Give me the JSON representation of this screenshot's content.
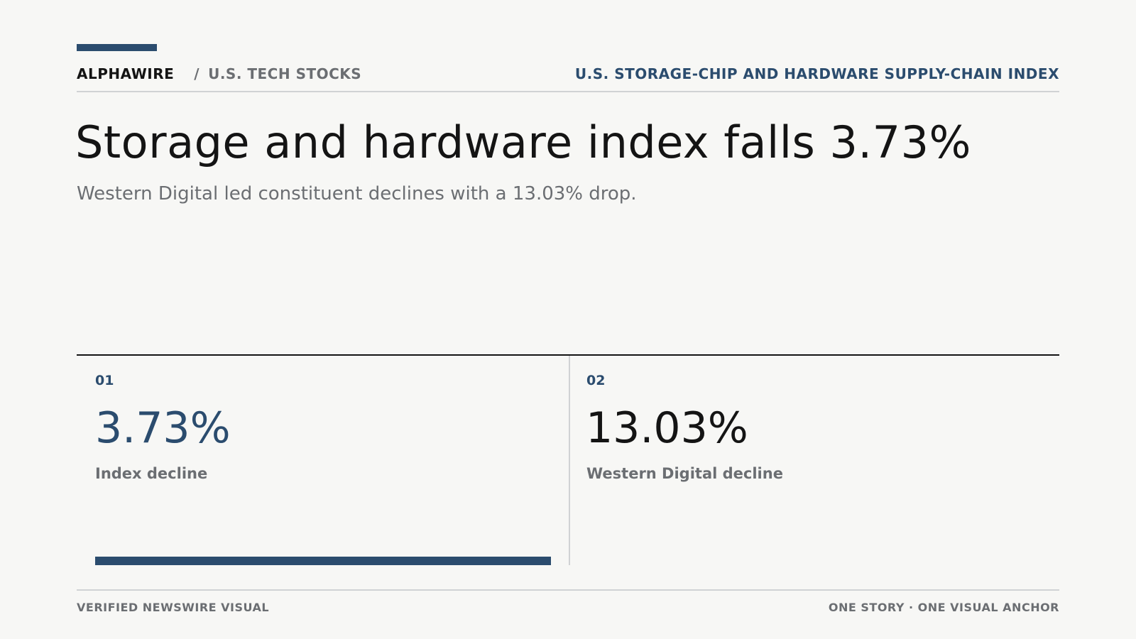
{
  "header": {
    "brand": "ALPHAWIRE",
    "separator": "/",
    "section": "U.S. TECH STOCKS",
    "index_name": "U.S. STORAGE-CHIP AND HARDWARE SUPPLY-CHAIN INDEX"
  },
  "headline": "Storage and hardware index falls 3.73%",
  "dek": "Western Digital led constituent declines with a 13.03% drop.",
  "cards": [
    {
      "number": "01",
      "value": "3.73%",
      "label": "Index decline",
      "bar_fill": 1.0
    },
    {
      "number": "02",
      "value": "13.03%",
      "label": "Western Digital decline"
    }
  ],
  "footer": {
    "left": "VERIFIED NEWSWIRE VISUAL",
    "right": "ONE STORY · ONE VISUAL ANCHOR"
  },
  "colors": {
    "accent": "#2b4c6e",
    "text": "#141414",
    "muted": "#6b6e72",
    "background": "#f7f7f5"
  }
}
